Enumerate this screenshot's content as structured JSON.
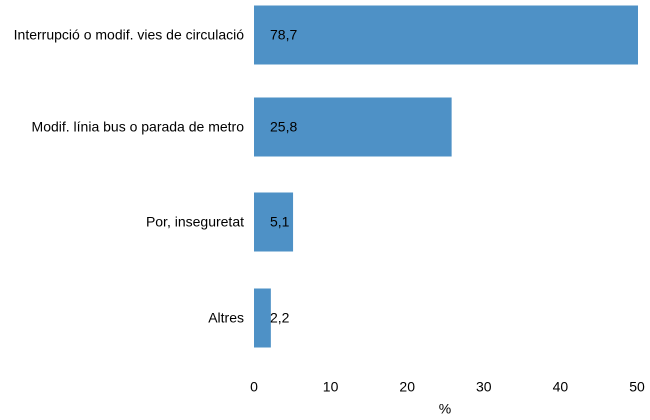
{
  "chart_data": {
    "type": "barh",
    "categories": [
      "Interrupció o modif. vies de circulació",
      "Modif. línia bus o parada de metro",
      "Por, inseguretat",
      "Altres"
    ],
    "values": [
      78.7,
      25.8,
      5.1,
      2.2
    ],
    "value_labels": [
      "78,7",
      "25,8",
      "5,1",
      "2,2"
    ],
    "color": "#4e91c6",
    "xlim": [
      0,
      50
    ],
    "xticks": [
      0,
      10,
      20,
      30,
      40,
      50
    ],
    "xlabel": "%",
    "grid": false
  }
}
